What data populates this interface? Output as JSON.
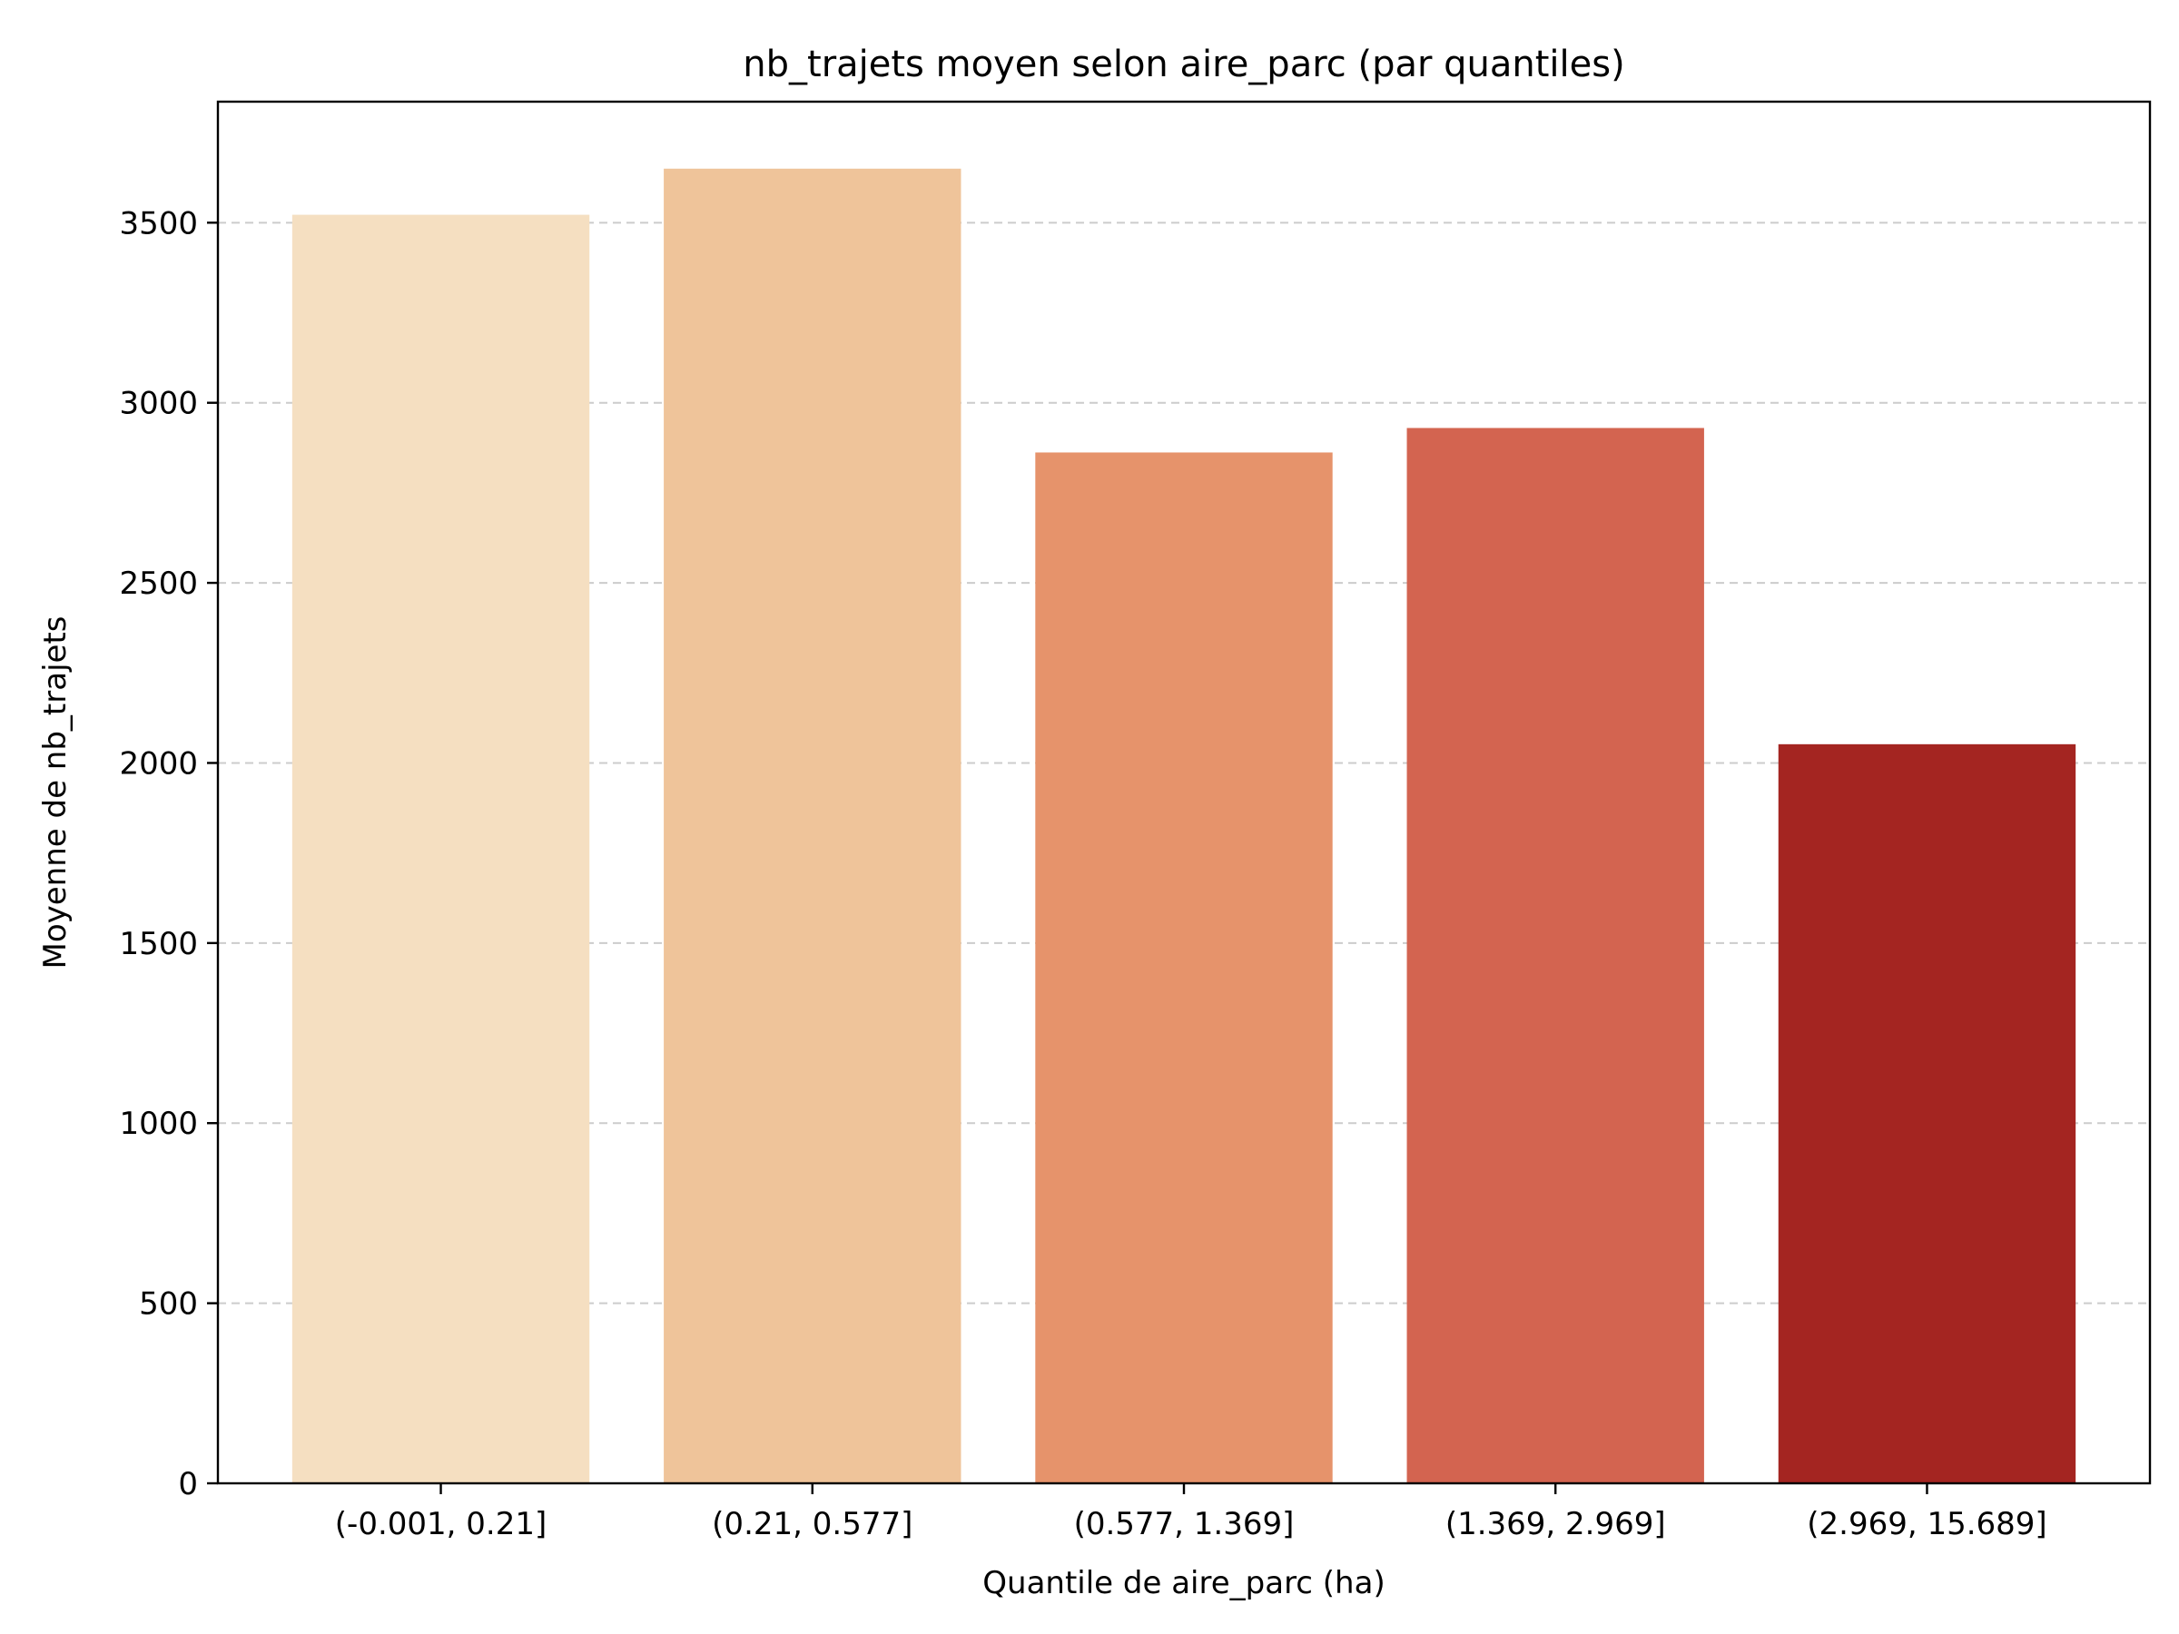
{
  "chart_data": {
    "type": "bar",
    "title": "nb_trajets moyen selon aire_parc (par quantiles)",
    "xlabel": "Quantile de aire_parc (ha)",
    "ylabel": "Moyenne de nb_trajets",
    "categories": [
      "(-0.001, 0.21]",
      "(0.21, 0.577]",
      "(0.577, 1.369]",
      "(1.369, 2.969]",
      "(2.969, 15.689]"
    ],
    "values": [
      3522,
      3650,
      2862,
      2930,
      2052
    ],
    "colors": [
      "#f5dfc1",
      "#efc49a",
      "#e6936b",
      "#d36450",
      "#a42521"
    ],
    "ylim": [
      0,
      3836
    ],
    "yticks": [
      0,
      500,
      1000,
      1500,
      2000,
      2500,
      3000,
      3500
    ],
    "grid": "y-dashed",
    "legend": "none"
  }
}
